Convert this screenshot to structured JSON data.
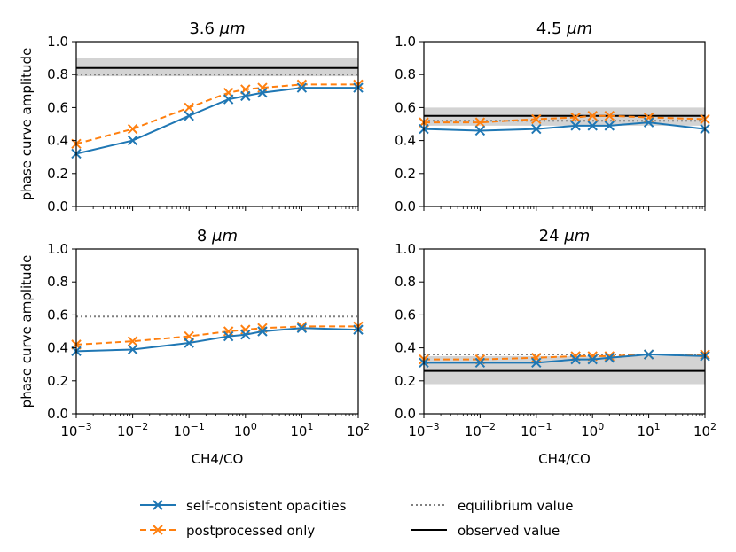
{
  "chart_data": {
    "type": "line",
    "x_scale": "log",
    "xlabel": "CH4/CO",
    "ylabel": "phase curve amplitude",
    "xlim": [
      0.001,
      100
    ],
    "ylim": [
      0.0,
      1.0
    ],
    "x": [
      0.001,
      0.01,
      0.1,
      0.5,
      1,
      2,
      10,
      100
    ],
    "x_tick_labels": [
      {
        "base": "10",
        "exp": "−3"
      },
      {
        "base": "10",
        "exp": "−2"
      },
      {
        "base": "10",
        "exp": "−1"
      },
      {
        "base": "10",
        "exp": "0"
      },
      {
        "base": "10",
        "exp": "1"
      },
      {
        "base": "10",
        "exp": "2"
      }
    ],
    "y_tick_labels": [
      "0.0",
      "0.2",
      "0.4",
      "0.6",
      "0.8",
      "1.0"
    ],
    "colors": {
      "self_consistent": "#1f77b4",
      "postprocessed": "#ff7f0e",
      "equilibrium": "#808080",
      "observed": "#000000",
      "observed_band": "#d3d3d3"
    },
    "panels": [
      {
        "title_value": "3.6",
        "title_unit": "μm",
        "self_consistent": [
          0.32,
          0.4,
          0.55,
          0.65,
          0.67,
          0.69,
          0.72,
          0.72
        ],
        "postprocessed": [
          0.38,
          0.47,
          0.6,
          0.69,
          0.71,
          0.72,
          0.74,
          0.74
        ],
        "equilibrium": 0.8,
        "observed": 0.84,
        "observed_band": [
          0.79,
          0.9
        ]
      },
      {
        "title_value": "4.5",
        "title_unit": "μm",
        "self_consistent": [
          0.47,
          0.46,
          0.47,
          0.49,
          0.49,
          0.49,
          0.51,
          0.47
        ],
        "postprocessed": [
          0.51,
          0.51,
          0.53,
          0.54,
          0.55,
          0.55,
          0.54,
          0.53
        ],
        "equilibrium": 0.52,
        "observed": 0.55,
        "observed_band": [
          0.49,
          0.6
        ]
      },
      {
        "title_value": "8",
        "title_unit": "μm",
        "self_consistent": [
          0.38,
          0.39,
          0.43,
          0.47,
          0.48,
          0.5,
          0.52,
          0.51
        ],
        "postprocessed": [
          0.42,
          0.44,
          0.47,
          0.5,
          0.51,
          0.52,
          0.53,
          0.53
        ],
        "equilibrium": 0.59,
        "observed": null,
        "observed_band": null
      },
      {
        "title_value": "24",
        "title_unit": "μm",
        "self_consistent": [
          0.31,
          0.31,
          0.31,
          0.33,
          0.33,
          0.34,
          0.36,
          0.35
        ],
        "postprocessed": [
          0.33,
          0.33,
          0.34,
          0.35,
          0.35,
          0.35,
          0.36,
          0.36
        ],
        "equilibrium": 0.36,
        "observed": 0.26,
        "observed_band": [
          0.18,
          0.35
        ]
      }
    ],
    "legend": {
      "self_consistent": "self-consistent opacities",
      "postprocessed": "postprocessed only",
      "equilibrium": "equilibrium value",
      "observed": "observed value"
    }
  }
}
